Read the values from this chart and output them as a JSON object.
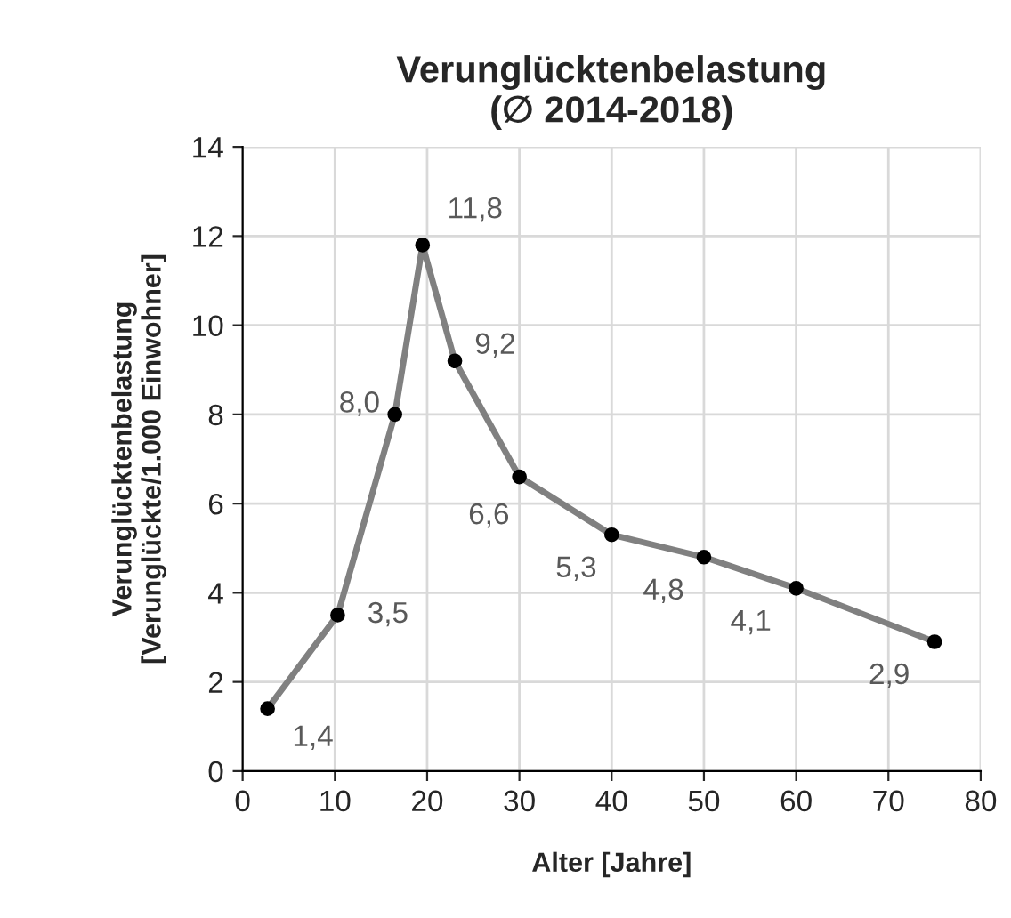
{
  "chart_data": {
    "type": "line",
    "title": "Verunglücktenbelastung\n(∅ 2014-2018)",
    "xlabel": "Alter [Jahre]",
    "ylabel": "Verunglücktenbelastung\n[Verunglückte/1.000 Einwohner]",
    "x": [
      2.7,
      10.3,
      16.5,
      19.5,
      23,
      30,
      40,
      50,
      60,
      75
    ],
    "series": [
      {
        "color": "#808080",
        "values": [
          1.4,
          3.5,
          8.0,
          11.8,
          9.2,
          6.6,
          5.3,
          4.8,
          4.1,
          2.9
        ],
        "value_labels": [
          "1,4",
          "3,5",
          "8,0",
          "11,8",
          "9,2",
          "6,6",
          "5,3",
          "4,8",
          "4,1",
          "2,9"
        ]
      }
    ],
    "xlim": [
      0,
      80
    ],
    "xticks": [
      0,
      10,
      20,
      30,
      40,
      50,
      60,
      70,
      80
    ],
    "ylim": [
      0,
      14
    ],
    "yticks": [
      0,
      2,
      4,
      6,
      8,
      10,
      12,
      14
    ],
    "grid": true,
    "marker": "circle",
    "line_style": "solid"
  }
}
